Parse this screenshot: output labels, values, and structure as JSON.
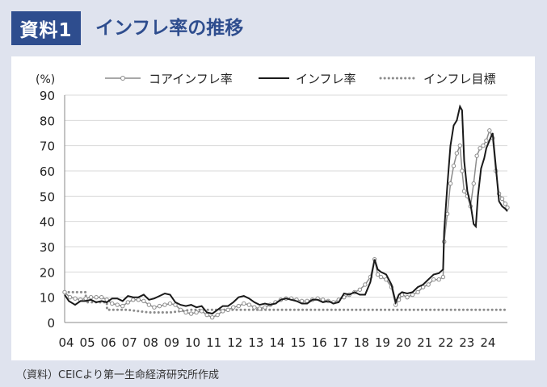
{
  "header": {
    "badge": "資料1",
    "title": "インフレ率の推移"
  },
  "source": "（資料）CEICより第一生命経済研究所作成",
  "chart_data": {
    "type": "line",
    "unit_label": "(%)",
    "ylim": [
      0,
      90
    ],
    "yticks": [
      0,
      10,
      20,
      30,
      40,
      50,
      60,
      70,
      80,
      90
    ],
    "xlim": [
      2004.0,
      2025.0
    ],
    "x_tick_labels": [
      "04",
      "05",
      "06",
      "07",
      "08",
      "09",
      "10",
      "11",
      "12",
      "13",
      "14",
      "15",
      "16",
      "17",
      "18",
      "19",
      "20",
      "21",
      "22",
      "23",
      "24"
    ],
    "x_tick_positions": [
      2004,
      2005,
      2006,
      2007,
      2008,
      2009,
      2010,
      2011,
      2012,
      2013,
      2014,
      2015,
      2016,
      2017,
      2018,
      2019,
      2020,
      2021,
      2022,
      2023,
      2024
    ],
    "grid": "horizontal",
    "legend_position": "top",
    "series": [
      {
        "name": "コアインフレ率",
        "style": "line-with-open-circles",
        "color": "#8c8c8c",
        "points": [
          [
            2004.0,
            12
          ],
          [
            2004.25,
            10
          ],
          [
            2004.5,
            9.5
          ],
          [
            2004.75,
            9
          ],
          [
            2005.0,
            9.5
          ],
          [
            2005.25,
            10
          ],
          [
            2005.5,
            10
          ],
          [
            2005.75,
            10
          ],
          [
            2006.0,
            9
          ],
          [
            2006.25,
            7.5
          ],
          [
            2006.5,
            7
          ],
          [
            2006.75,
            6.5
          ],
          [
            2007.0,
            8
          ],
          [
            2007.25,
            9
          ],
          [
            2007.5,
            9
          ],
          [
            2007.75,
            8.5
          ],
          [
            2008.0,
            7
          ],
          [
            2008.25,
            6
          ],
          [
            2008.5,
            6.5
          ],
          [
            2008.75,
            7
          ],
          [
            2009.0,
            7.5
          ],
          [
            2009.25,
            7
          ],
          [
            2009.5,
            5
          ],
          [
            2009.75,
            4
          ],
          [
            2010.0,
            3.5
          ],
          [
            2010.25,
            4
          ],
          [
            2010.5,
            4.5
          ],
          [
            2010.75,
            3
          ],
          [
            2011.0,
            2
          ],
          [
            2011.25,
            3
          ],
          [
            2011.5,
            4.5
          ],
          [
            2011.75,
            5
          ],
          [
            2012.0,
            6
          ],
          [
            2012.25,
            6.5
          ],
          [
            2012.5,
            7.5
          ],
          [
            2012.75,
            7
          ],
          [
            2013.0,
            6
          ],
          [
            2013.25,
            5.5
          ],
          [
            2013.5,
            6
          ],
          [
            2013.75,
            7
          ],
          [
            2014.0,
            8
          ],
          [
            2014.25,
            9
          ],
          [
            2014.5,
            9.5
          ],
          [
            2014.75,
            9.5
          ],
          [
            2015.0,
            9
          ],
          [
            2015.25,
            8.5
          ],
          [
            2015.5,
            8.5
          ],
          [
            2015.75,
            9
          ],
          [
            2016.0,
            9.5
          ],
          [
            2016.25,
            9
          ],
          [
            2016.5,
            8.5
          ],
          [
            2016.75,
            8
          ],
          [
            2017.0,
            9
          ],
          [
            2017.25,
            10
          ],
          [
            2017.5,
            11
          ],
          [
            2017.75,
            12
          ],
          [
            2018.0,
            13
          ],
          [
            2018.25,
            15
          ],
          [
            2018.5,
            18
          ],
          [
            2018.7,
            25
          ],
          [
            2018.85,
            19
          ],
          [
            2019.0,
            18
          ],
          [
            2019.25,
            17
          ],
          [
            2019.5,
            14
          ],
          [
            2019.7,
            7
          ],
          [
            2019.85,
            9
          ],
          [
            2020.0,
            11
          ],
          [
            2020.25,
            10
          ],
          [
            2020.5,
            11
          ],
          [
            2020.75,
            12
          ],
          [
            2021.0,
            14
          ],
          [
            2021.25,
            15
          ],
          [
            2021.5,
            17
          ],
          [
            2021.75,
            17
          ],
          [
            2021.95,
            18
          ],
          [
            2022.0,
            32
          ],
          [
            2022.15,
            43
          ],
          [
            2022.3,
            55
          ],
          [
            2022.45,
            62
          ],
          [
            2022.6,
            67
          ],
          [
            2022.75,
            70
          ],
          [
            2022.85,
            60
          ],
          [
            2022.95,
            52
          ],
          [
            2023.1,
            50
          ],
          [
            2023.25,
            46
          ],
          [
            2023.4,
            55
          ],
          [
            2023.55,
            66
          ],
          [
            2023.7,
            69
          ],
          [
            2023.85,
            70
          ],
          [
            2024.0,
            72
          ],
          [
            2024.15,
            76
          ],
          [
            2024.3,
            73
          ],
          [
            2024.45,
            60
          ],
          [
            2024.6,
            51
          ],
          [
            2024.75,
            49
          ],
          [
            2024.9,
            47
          ],
          [
            2025.0,
            45.5
          ]
        ]
      },
      {
        "name": "インフレ率",
        "style": "solid-line",
        "color": "#1a1a1a",
        "points": [
          [
            2004.0,
            11
          ],
          [
            2004.2,
            8.5
          ],
          [
            2004.5,
            7
          ],
          [
            2004.75,
            8.5
          ],
          [
            2005.0,
            8.5
          ],
          [
            2005.25,
            9
          ],
          [
            2005.5,
            8
          ],
          [
            2005.75,
            8.5
          ],
          [
            2006.0,
            8
          ],
          [
            2006.25,
            9.5
          ],
          [
            2006.5,
            9.5
          ],
          [
            2006.75,
            8.5
          ],
          [
            2007.0,
            10.5
          ],
          [
            2007.25,
            10
          ],
          [
            2007.5,
            10
          ],
          [
            2007.75,
            11
          ],
          [
            2008.0,
            9
          ],
          [
            2008.25,
            9.5
          ],
          [
            2008.5,
            10.5
          ],
          [
            2008.75,
            11.5
          ],
          [
            2009.0,
            11
          ],
          [
            2009.25,
            8
          ],
          [
            2009.5,
            7
          ],
          [
            2009.75,
            6.5
          ],
          [
            2010.0,
            7
          ],
          [
            2010.25,
            6
          ],
          [
            2010.5,
            6.5
          ],
          [
            2010.75,
            4
          ],
          [
            2011.0,
            3.5
          ],
          [
            2011.25,
            5
          ],
          [
            2011.5,
            6.5
          ],
          [
            2011.75,
            6.5
          ],
          [
            2012.0,
            8
          ],
          [
            2012.25,
            10
          ],
          [
            2012.5,
            10.5
          ],
          [
            2012.75,
            9.5
          ],
          [
            2013.0,
            8
          ],
          [
            2013.25,
            7
          ],
          [
            2013.5,
            7.5
          ],
          [
            2013.75,
            7
          ],
          [
            2014.0,
            7.5
          ],
          [
            2014.25,
            9
          ],
          [
            2014.5,
            9.5
          ],
          [
            2014.75,
            9
          ],
          [
            2015.0,
            8.5
          ],
          [
            2015.25,
            7.5
          ],
          [
            2015.5,
            7.5
          ],
          [
            2015.75,
            9
          ],
          [
            2016.0,
            9
          ],
          [
            2016.25,
            8
          ],
          [
            2016.5,
            8.5
          ],
          [
            2016.75,
            7.5
          ],
          [
            2017.0,
            8
          ],
          [
            2017.25,
            11.5
          ],
          [
            2017.5,
            11
          ],
          [
            2017.75,
            12
          ],
          [
            2018.0,
            11
          ],
          [
            2018.25,
            11
          ],
          [
            2018.5,
            16
          ],
          [
            2018.7,
            25
          ],
          [
            2018.85,
            21
          ],
          [
            2019.0,
            20
          ],
          [
            2019.25,
            19
          ],
          [
            2019.5,
            15
          ],
          [
            2019.7,
            8
          ],
          [
            2019.85,
            11
          ],
          [
            2020.0,
            12
          ],
          [
            2020.25,
            11.5
          ],
          [
            2020.5,
            12
          ],
          [
            2020.75,
            14
          ],
          [
            2021.0,
            15
          ],
          [
            2021.25,
            17
          ],
          [
            2021.5,
            19
          ],
          [
            2021.75,
            19.5
          ],
          [
            2021.95,
            21
          ],
          [
            2022.0,
            36
          ],
          [
            2022.15,
            54
          ],
          [
            2022.3,
            70
          ],
          [
            2022.45,
            78
          ],
          [
            2022.6,
            80
          ],
          [
            2022.75,
            85.5
          ],
          [
            2022.85,
            84
          ],
          [
            2022.95,
            64
          ],
          [
            2023.1,
            52
          ],
          [
            2023.25,
            47
          ],
          [
            2023.4,
            39
          ],
          [
            2023.5,
            38
          ],
          [
            2023.6,
            50
          ],
          [
            2023.75,
            61
          ],
          [
            2023.9,
            65
          ],
          [
            2024.0,
            69
          ],
          [
            2024.15,
            72
          ],
          [
            2024.3,
            75
          ],
          [
            2024.45,
            62
          ],
          [
            2024.6,
            48
          ],
          [
            2024.75,
            46
          ],
          [
            2024.9,
            45
          ],
          [
            2025.0,
            44
          ]
        ]
      },
      {
        "name": "インフレ目標",
        "style": "dotted-line",
        "color": "#8c8c8c",
        "points": [
          [
            2004.0,
            12
          ],
          [
            2005.0,
            12
          ],
          [
            2005.01,
            8
          ],
          [
            2006.0,
            8
          ],
          [
            2006.01,
            5
          ],
          [
            2007.0,
            5
          ],
          [
            2008.0,
            4
          ],
          [
            2009.0,
            4
          ],
          [
            2010.0,
            5
          ],
          [
            2011.0,
            5
          ],
          [
            2012.0,
            5
          ],
          [
            2013.0,
            5
          ],
          [
            2014.0,
            5
          ],
          [
            2015.0,
            5
          ],
          [
            2016.0,
            5
          ],
          [
            2017.0,
            5
          ],
          [
            2018.0,
            5
          ],
          [
            2019.0,
            5
          ],
          [
            2020.0,
            5
          ],
          [
            2021.0,
            5
          ],
          [
            2022.0,
            5
          ],
          [
            2023.0,
            5
          ],
          [
            2024.0,
            5
          ],
          [
            2025.0,
            5
          ]
        ]
      }
    ]
  }
}
